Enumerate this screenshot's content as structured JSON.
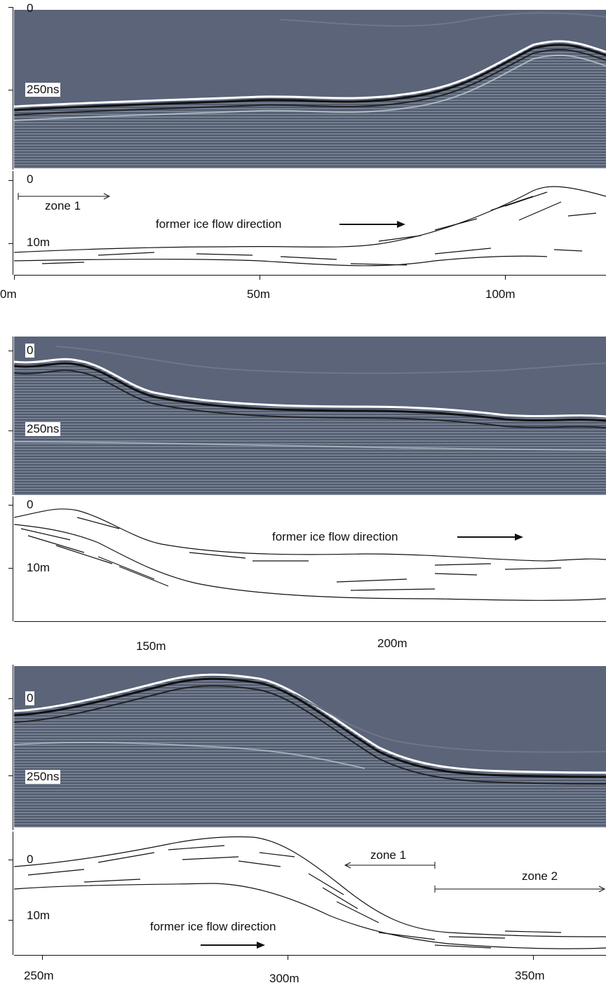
{
  "panels": [
    {
      "radar_labels": {
        "top": "0",
        "mid": "250ns"
      },
      "interp_labels": {
        "top": "0",
        "mid": "10m"
      },
      "x_ticks": [
        "0m",
        "50m",
        "100m"
      ],
      "flow_label": "former ice flow direction",
      "zone_label": "zone 1"
    },
    {
      "radar_labels": {
        "top": "0",
        "mid": "250ns"
      },
      "interp_labels": {
        "top": "0",
        "mid": "10m"
      },
      "x_ticks": [
        "150m",
        "200m"
      ],
      "flow_label": "former ice flow direction"
    },
    {
      "radar_labels": {
        "top": "0",
        "mid": "250ns"
      },
      "interp_labels": {
        "top": "0",
        "mid": "10m"
      },
      "x_ticks": [
        "250m",
        "300m",
        "350m"
      ],
      "flow_label": "former ice flow direction",
      "zone1_label": "zone 1",
      "zone2_label": "zone 2"
    }
  ]
}
